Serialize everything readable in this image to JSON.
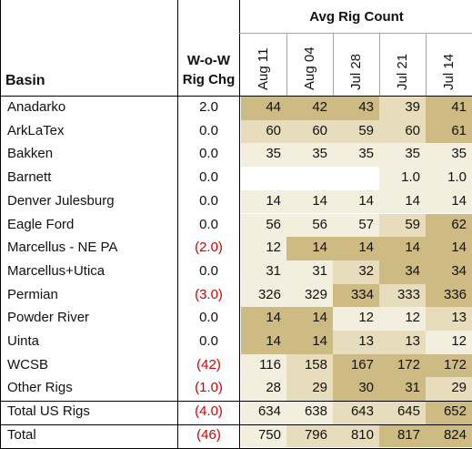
{
  "chart_data": {
    "type": "table",
    "header": {
      "basin": "Basin",
      "wow": [
        "W-o-W",
        "Rig Chg"
      ],
      "avg": "Avg Rig Count"
    },
    "columns": [
      "Aug 11",
      "Aug 04",
      "Jul 28",
      "Jul 21",
      "Jul 14"
    ],
    "rows": [
      {
        "basin": "Anadarko",
        "chg": "2.0",
        "neg": false,
        "values": [
          "44",
          "42",
          "43",
          "39",
          "41"
        ]
      },
      {
        "basin": "ArkLaTex",
        "chg": "0.0",
        "neg": false,
        "values": [
          "60",
          "60",
          "59",
          "60",
          "61"
        ]
      },
      {
        "basin": "Bakken",
        "chg": "0.0",
        "neg": false,
        "values": [
          "35",
          "35",
          "35",
          "35",
          "35"
        ]
      },
      {
        "basin": "Barnett",
        "chg": "0.0",
        "neg": false,
        "values": [
          "",
          "",
          "",
          "1.0",
          "1.0"
        ]
      },
      {
        "basin": "Denver Julesburg",
        "chg": "0.0",
        "neg": false,
        "values": [
          "14",
          "14",
          "14",
          "14",
          "14"
        ]
      },
      {
        "basin": "Eagle Ford",
        "chg": "0.0",
        "neg": false,
        "values": [
          "56",
          "56",
          "57",
          "59",
          "62"
        ]
      },
      {
        "basin": "Marcellus - NE PA",
        "chg": "(2.0)",
        "neg": true,
        "values": [
          "12",
          "14",
          "14",
          "14",
          "14"
        ]
      },
      {
        "basin": "Marcellus+Utica",
        "chg": "0.0",
        "neg": false,
        "values": [
          "31",
          "31",
          "32",
          "34",
          "34"
        ]
      },
      {
        "basin": "Permian",
        "chg": "(3.0)",
        "neg": true,
        "values": [
          "326",
          "329",
          "334",
          "333",
          "336"
        ]
      },
      {
        "basin": "Powder River",
        "chg": "0.0",
        "neg": false,
        "values": [
          "14",
          "14",
          "12",
          "12",
          "13"
        ]
      },
      {
        "basin": "Uinta",
        "chg": "0.0",
        "neg": false,
        "values": [
          "14",
          "14",
          "13",
          "13",
          "12"
        ]
      },
      {
        "basin": "WCSB",
        "chg": "(42)",
        "neg": true,
        "values": [
          "116",
          "158",
          "167",
          "172",
          "172"
        ]
      },
      {
        "basin": "Other Rigs",
        "chg": "(1.0)",
        "neg": true,
        "values": [
          "28",
          "29",
          "30",
          "31",
          "29"
        ]
      },
      {
        "basin": "Total US Rigs",
        "chg": "(4.0)",
        "neg": true,
        "values": [
          "634",
          "638",
          "643",
          "645",
          "652"
        ]
      },
      {
        "basin": "Total",
        "chg": "(46)",
        "neg": true,
        "values": [
          "750",
          "796",
          "810",
          "817",
          "824"
        ]
      }
    ],
    "shading": {
      "light": "#f3efdf",
      "mid": "#e7dcbc",
      "dark": "#cdbb83"
    }
  }
}
